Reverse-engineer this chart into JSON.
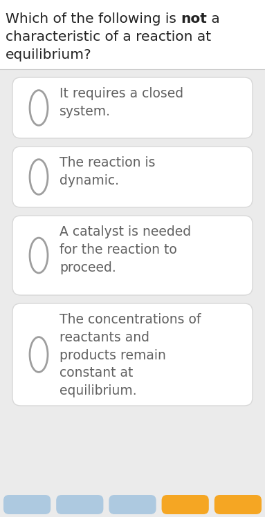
{
  "page_bg": "#ebebeb",
  "title_bg": "#ffffff",
  "title_line1_normal": "Which of the following is ",
  "title_line1_bold": "not",
  "title_line1_end": " a",
  "title_line2": "characteristic of a reaction at",
  "title_line3": "equilibrium?",
  "title_fontsize": 14.5,
  "title_color": "#212121",
  "options": [
    "It requires a closed\nsystem.",
    "The reaction is\ndynamic.",
    "A catalyst is needed\nfor the reaction to\nproceed.",
    "The concentrations of\nreactants and\nproducts remain\nconstant at\nequilibrium."
  ],
  "option_fontsize": 13.5,
  "option_text_color": "#606060",
  "card_bg": "#ffffff",
  "card_border": "#d8d8d8",
  "circle_edge": "#9e9e9e",
  "circle_fill": "#ffffff",
  "bottom_buttons": [
    "#adc9e0",
    "#adc9e0",
    "#adc9e0",
    "#f5a623",
    "#f5a623"
  ]
}
